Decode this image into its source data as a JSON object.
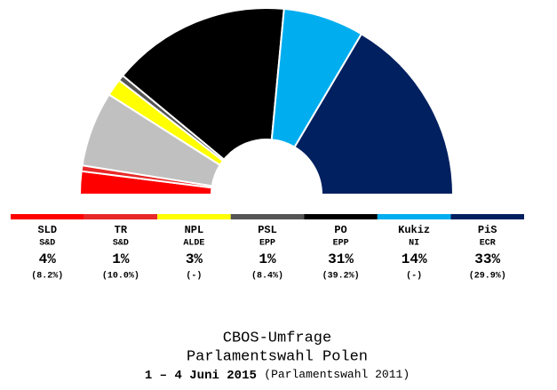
{
  "chart_data": {
    "type": "semi-pie",
    "title": "CBOS-Umfrage",
    "subtitle": "Parlamentswahl Polen",
    "date": "1 – 4 Juni 2015",
    "comparison_note": "(Parlamentswahl 2011)",
    "categories": [
      "SLD",
      "TR",
      null,
      "NPL",
      "PSL",
      "PO",
      "Kukiz",
      "PiS"
    ],
    "groups": [
      "S&D",
      "S&D",
      null,
      "ALDE",
      "EPP",
      "EPP",
      "NI",
      "ECR"
    ],
    "values": [
      4,
      1,
      13,
      3,
      1,
      31,
      14,
      33
    ],
    "value_labels": [
      "4%",
      "1%",
      null,
      "3%",
      "1%",
      "31%",
      "14%",
      "33%"
    ],
    "previous": [
      "(8.2%)",
      "(10.0%)",
      null,
      "(-)",
      "(8.4%)",
      "(39.2%)",
      "(-)",
      "(29.9%)"
    ],
    "colors": [
      "#ff0000",
      "#e82828",
      "#c0c0c0",
      "#ffff00",
      "#555555",
      "#000000",
      "#00aeef",
      "#002060"
    ]
  }
}
